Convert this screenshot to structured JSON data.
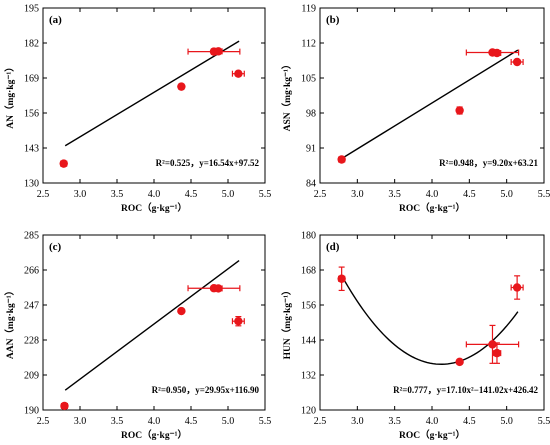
{
  "chart_data": [
    {
      "type": "scatter",
      "panel_label": "(a)",
      "xlabel": "ROC（g·kg⁻¹）",
      "ylabel": "AN（mg·kg⁻¹）",
      "xlim": [
        2.5,
        5.5
      ],
      "ylim": [
        130,
        195
      ],
      "xticks": [
        "2.5",
        "3.0",
        "3.5",
        "4.0",
        "4.5",
        "5.0",
        "5.5"
      ],
      "yticks": [
        "130",
        "143",
        "156",
        "169",
        "182",
        "195"
      ],
      "points": [
        {
          "x": 2.78,
          "y": 137.2,
          "xerr": 0.04,
          "yerr": 0.5
        },
        {
          "x": 4.37,
          "y": 165.8,
          "xerr": 0.02,
          "yerr": 0.8
        },
        {
          "x": 4.81,
          "y": 178.8,
          "xerr": 0.35,
          "yerr": 1.0
        },
        {
          "x": 4.87,
          "y": 178.9,
          "xerr": 0.05,
          "yerr": 0.6
        },
        {
          "x": 5.14,
          "y": 170.6,
          "xerr": 0.08,
          "yerr": 0.8
        }
      ],
      "fit": {
        "kind": "linear",
        "a": 16.54,
        "b": 97.52,
        "x_range": [
          2.8,
          5.15
        ]
      },
      "equation": "R²=0.525，y=16.54x+97.52"
    },
    {
      "type": "scatter",
      "panel_label": "(b)",
      "xlabel": "ROC（g·kg⁻¹）",
      "ylabel": "ASN（mg·kg⁻¹）",
      "xlim": [
        2.5,
        5.5
      ],
      "ylim": [
        84,
        119
      ],
      "xticks": [
        "2.5",
        "3.0",
        "3.5",
        "4.0",
        "4.5",
        "5.0",
        "5.5"
      ],
      "yticks": [
        "84",
        "91",
        "98",
        "105",
        "112",
        "119"
      ],
      "points": [
        {
          "x": 2.79,
          "y": 88.7,
          "xerr": 0.04,
          "yerr": 0.3
        },
        {
          "x": 4.37,
          "y": 98.5,
          "xerr": 0.02,
          "yerr": 0.7
        },
        {
          "x": 4.81,
          "y": 110.1,
          "xerr": 0.35,
          "yerr": 0.4
        },
        {
          "x": 4.87,
          "y": 110.0,
          "xerr": 0.05,
          "yerr": 0.3
        },
        {
          "x": 5.14,
          "y": 108.2,
          "xerr": 0.08,
          "yerr": 0.4
        }
      ],
      "fit": {
        "kind": "linear",
        "a": 9.2,
        "b": 63.21,
        "x_range": [
          2.8,
          5.15
        ]
      },
      "equation": "R²=0.948，y=9.20x+63.21"
    },
    {
      "type": "scatter",
      "panel_label": "(c)",
      "xlabel": "ROC（g·kg⁻¹）",
      "ylabel": "AAN（mg·kg⁻¹）",
      "xlim": [
        2.5,
        5.5
      ],
      "ylim": [
        190,
        285
      ],
      "xticks": [
        "2.5",
        "3.0",
        "3.5",
        "4.0",
        "4.5",
        "5.0",
        "5.5"
      ],
      "yticks": [
        "190",
        "209",
        "228",
        "247",
        "266",
        "285"
      ],
      "points": [
        {
          "x": 2.79,
          "y": 192.2,
          "xerr": 0.04,
          "yerr": 0.5
        },
        {
          "x": 4.37,
          "y": 243.7,
          "xerr": 0.02,
          "yerr": 0.7
        },
        {
          "x": 4.81,
          "y": 256.1,
          "xerr": 0.35,
          "yerr": 0.9
        },
        {
          "x": 4.87,
          "y": 256.0,
          "xerr": 0.05,
          "yerr": 0.6
        },
        {
          "x": 5.14,
          "y": 238.2,
          "xerr": 0.08,
          "yerr": 2.5
        }
      ],
      "fit": {
        "kind": "linear",
        "a": 29.95,
        "b": 116.9,
        "x_range": [
          2.8,
          5.15
        ]
      },
      "equation": "R²=0.950，y=29.95x+116.90"
    },
    {
      "type": "scatter",
      "panel_label": "(d)",
      "xlabel": "ROC（g·kg⁻¹）",
      "ylabel": "HUN（mg·kg⁻¹）",
      "xlim": [
        2.5,
        5.5
      ],
      "ylim": [
        120,
        180
      ],
      "xticks": [
        "2.5",
        "3.0",
        "3.5",
        "4.0",
        "4.5",
        "5.0",
        "5.5"
      ],
      "yticks": [
        "120",
        "132",
        "144",
        "156",
        "168",
        "180"
      ],
      "points": [
        {
          "x": 2.79,
          "y": 165.0,
          "xerr": 0.04,
          "yerr": 4.0
        },
        {
          "x": 4.37,
          "y": 136.5,
          "xerr": 0.02,
          "yerr": 0.5
        },
        {
          "x": 4.81,
          "y": 142.5,
          "xerr": 0.35,
          "yerr": 6.5
        },
        {
          "x": 4.87,
          "y": 139.5,
          "xerr": 0.05,
          "yerr": 3.5
        },
        {
          "x": 5.14,
          "y": 162.0,
          "xerr": 0.08,
          "yerr": 4.0
        }
      ],
      "fit": {
        "kind": "quadratic",
        "a": 17.1,
        "b": -141.02,
        "c": 426.42,
        "x_range": [
          2.8,
          5.15
        ]
      },
      "equation": "R²=0.777，y=17.10x²−141.02x+426.42"
    }
  ],
  "colors": {
    "points": "#e8161b",
    "fit": "#000000",
    "axes": "#000000"
  }
}
